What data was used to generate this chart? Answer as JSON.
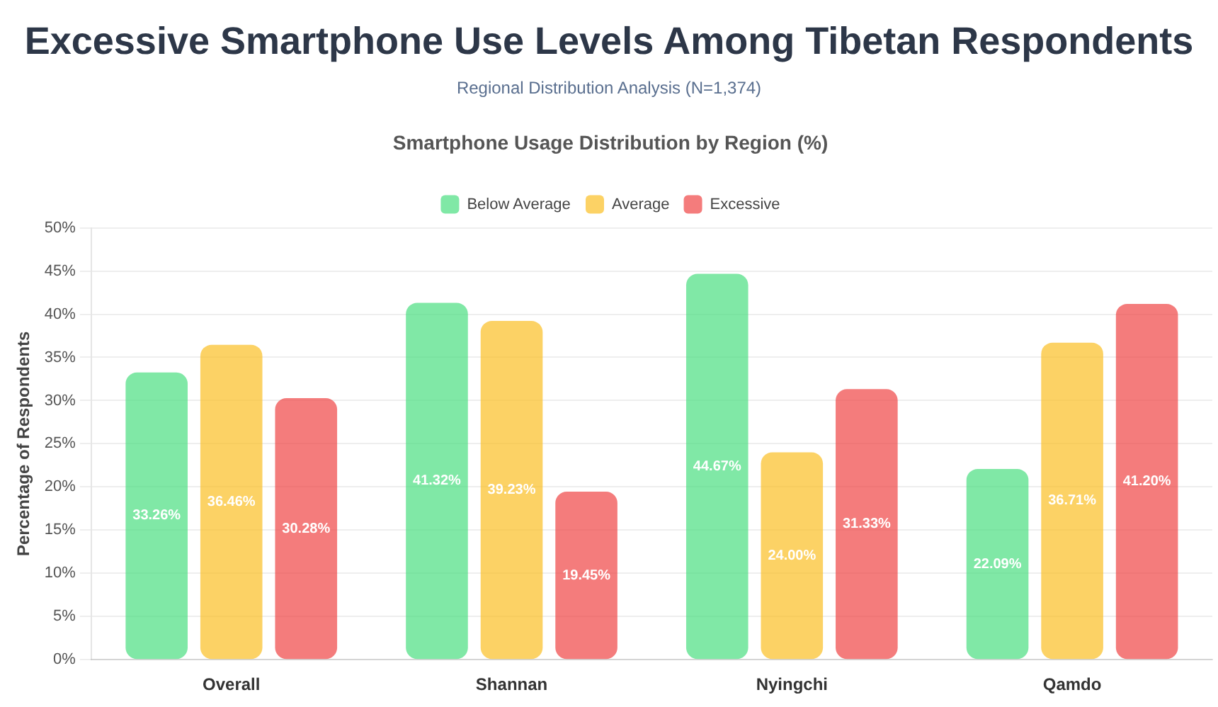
{
  "chart_data": {
    "type": "bar",
    "title": "Excessive Smartphone Use Levels Among Tibetan Respondents",
    "subtitle": "Regional Distribution Analysis (N=1,374)",
    "annotations": [
      "Smartphone Usage Distribution by Region (%)"
    ],
    "ylabel": "Percentage of Respondents",
    "categories": [
      "Overall",
      "Shannan",
      "Nyingchi",
      "Qamdo"
    ],
    "series": [
      {
        "name": "Below Average",
        "color": "#4ade80",
        "values": [
          33.26,
          41.32,
          44.67,
          22.09
        ],
        "value_labels": [
          "33.26%",
          "41.32%",
          "44.67%",
          "22.09%"
        ]
      },
      {
        "name": "Average",
        "color": "#fbbf24",
        "values": [
          36.46,
          39.23,
          24.0,
          36.71
        ],
        "value_labels": [
          "36.46%",
          "39.23%",
          "24.00%",
          "36.71%"
        ]
      },
      {
        "name": "Excessive",
        "color": "#ef4444",
        "values": [
          30.28,
          19.45,
          31.33,
          41.2
        ],
        "value_labels": [
          "30.28%",
          "19.45%",
          "31.33%",
          "41.20%"
        ]
      }
    ],
    "ylim": [
      0,
      50
    ],
    "yticks": [
      {
        "value": 0,
        "label": "0%"
      },
      {
        "value": 5,
        "label": "5%"
      },
      {
        "value": 10,
        "label": "10%"
      },
      {
        "value": 15,
        "label": "15%"
      },
      {
        "value": 20,
        "label": "20%"
      },
      {
        "value": 25,
        "label": "25%"
      },
      {
        "value": 30,
        "label": "30%"
      },
      {
        "value": 35,
        "label": "35%"
      },
      {
        "value": 40,
        "label": "40%"
      },
      {
        "value": 45,
        "label": "45%"
      },
      {
        "value": 50,
        "label": "50%"
      }
    ],
    "grid": "y",
    "legend": "top"
  }
}
